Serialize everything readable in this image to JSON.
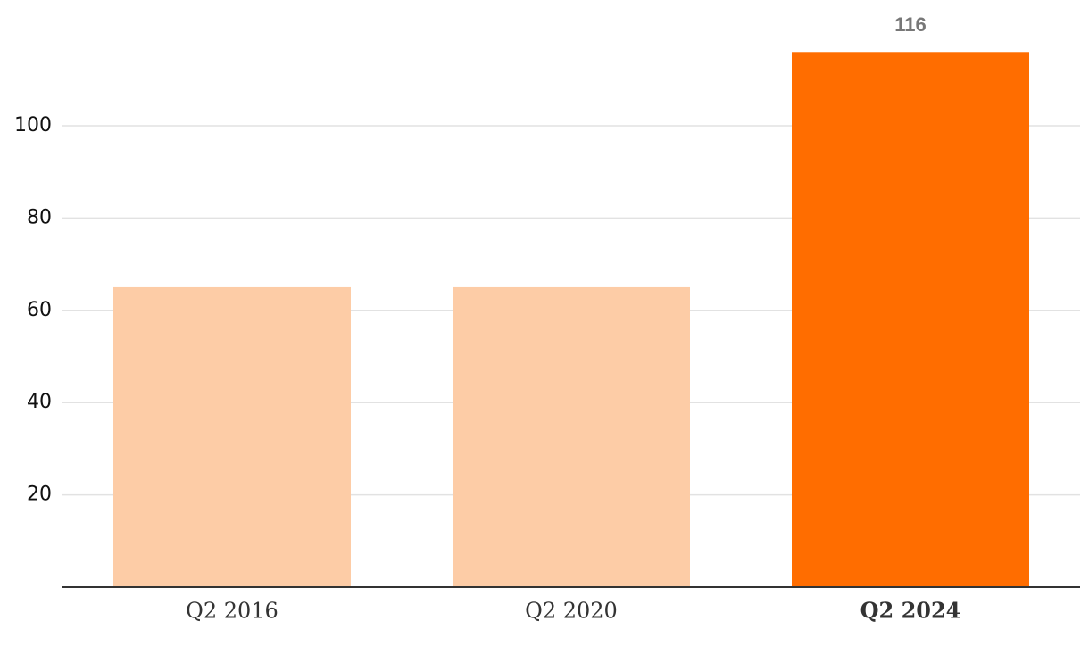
{
  "chart_data": {
    "type": "bar",
    "categories": [
      "Q2 2016",
      "Q2 2020",
      "Q2 2024"
    ],
    "values": [
      65,
      65,
      116
    ],
    "colors": [
      "#fdcca6",
      "#fdcca6",
      "#ff6d00"
    ],
    "highlight": [
      false,
      false,
      true
    ],
    "ylim": [
      0,
      120
    ],
    "yticks": [
      20,
      40,
      60,
      80,
      100
    ],
    "grid": true
  }
}
